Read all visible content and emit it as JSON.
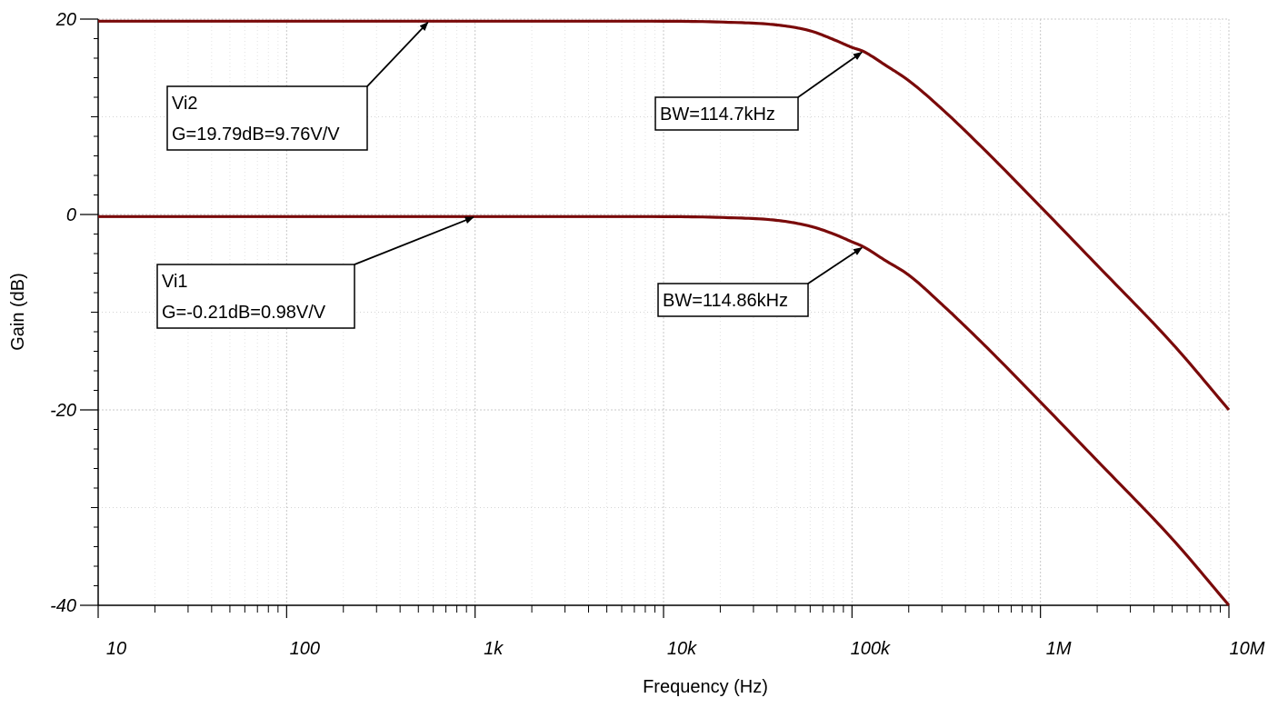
{
  "chart_data": {
    "type": "line",
    "title": "",
    "xlabel": "Frequency (Hz)",
    "ylabel": "Gain (dB)",
    "xscale": "log",
    "xlim": [
      10,
      10000000
    ],
    "ylim": [
      -40,
      20
    ],
    "x_ticks": [
      10,
      100,
      1000,
      10000,
      100000,
      1000000,
      10000000
    ],
    "x_tick_labels": [
      "10",
      "100",
      "1k",
      "10k",
      "100k",
      "1M",
      "10M"
    ],
    "y_ticks": [
      20,
      0,
      -20,
      -40
    ],
    "y_tick_labels": [
      "20",
      "0",
      "-20",
      "-40"
    ],
    "grid": true,
    "line_color": "#7a0a0a",
    "series": [
      {
        "name": "Vi2",
        "points": [
          [
            10,
            19.79
          ],
          [
            1000,
            19.79
          ],
          [
            10000,
            19.78
          ],
          [
            20000,
            19.7
          ],
          [
            40000,
            19.4
          ],
          [
            60000,
            18.8
          ],
          [
            80000,
            17.9
          ],
          [
            100000,
            17.1
          ],
          [
            114700,
            16.7
          ],
          [
            150000,
            15.3
          ],
          [
            200000,
            13.7
          ],
          [
            300000,
            10.8
          ],
          [
            500000,
            6.7
          ],
          [
            1000000,
            0.8
          ],
          [
            2000000,
            -5.2
          ],
          [
            5000000,
            -13.2
          ],
          [
            10000000,
            -20.0
          ]
        ]
      },
      {
        "name": "Vi1",
        "points": [
          [
            10,
            -0.21
          ],
          [
            1000,
            -0.21
          ],
          [
            10000,
            -0.22
          ],
          [
            20000,
            -0.3
          ],
          [
            40000,
            -0.6
          ],
          [
            60000,
            -1.2
          ],
          [
            80000,
            -2.0
          ],
          [
            100000,
            -2.8
          ],
          [
            114860,
            -3.3
          ],
          [
            150000,
            -4.7
          ],
          [
            200000,
            -6.2
          ],
          [
            300000,
            -9.2
          ],
          [
            500000,
            -13.3
          ],
          [
            1000000,
            -19.2
          ],
          [
            2000000,
            -25.2
          ],
          [
            5000000,
            -33.2
          ],
          [
            10000000,
            -40.0
          ]
        ]
      }
    ],
    "annotations": [
      {
        "id": "vi2-gain",
        "lines": [
          "Vi2",
          "G=19.79dB=9.76V/V"
        ],
        "target": [
          570,
          19.79
        ]
      },
      {
        "id": "vi2-bw",
        "lines": [
          "BW=114.7kHz"
        ],
        "target": [
          114700,
          16.7
        ]
      },
      {
        "id": "vi1-gain",
        "lines": [
          "Vi1",
          "G=-0.21dB=0.98V/V"
        ],
        "target": [
          1000,
          -0.21
        ]
      },
      {
        "id": "vi1-bw",
        "lines": [
          "BW=114.86kHz"
        ],
        "target": [
          114860,
          -3.3
        ]
      }
    ]
  }
}
